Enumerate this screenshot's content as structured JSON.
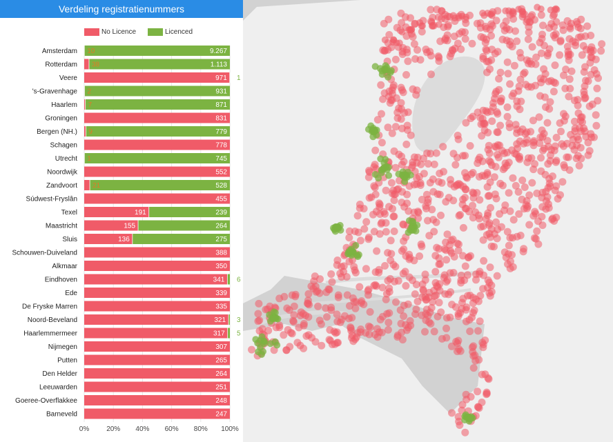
{
  "panel": {
    "title": "Verdeling registratienummers"
  },
  "colors": {
    "no_licence": "#f05b68",
    "licenced": "#7cb342",
    "title_bar": "#2a8ce5",
    "map_land": "#efefef",
    "map_water": "#d2d2d2"
  },
  "chart_data": {
    "type": "bar",
    "orientation": "horizontal",
    "stacked": "percent",
    "title": "Verdeling registratienummers",
    "legend_position": "top",
    "x_ticks": [
      "0%",
      "20%",
      "40%",
      "60%",
      "80%",
      "100%"
    ],
    "xlim": [
      0,
      100
    ],
    "categories": [
      "Amsterdam",
      "Rotterdam",
      "Veere",
      "'s-Gravenhage",
      "Haarlem",
      "Groningen",
      "Bergen (NH.)",
      "Schagen",
      "Utrecht",
      "Noordwijk",
      "Zandvoort",
      "Súdwest-Fryslân",
      "Texel",
      "Maastricht",
      "Sluis",
      "Schouwen-Duiveland",
      "Alkmaar",
      "Eindhoven",
      "Ede",
      "De Fryske Marren",
      "Noord-Beveland",
      "Haarlemmermeer",
      "Nijmegen",
      "Putten",
      "Den Helder",
      "Leeuwarden",
      "Goeree-Overflakkee",
      "Barneveld"
    ],
    "series": [
      {
        "name": "No Licence",
        "color": "#f05b68",
        "values": [
          10,
          38,
          971,
          2,
          7,
          831,
          9,
          778,
          1,
          552,
          21,
          455,
          191,
          155,
          136,
          388,
          350,
          341,
          339,
          335,
          321,
          317,
          307,
          265,
          264,
          251,
          248,
          247
        ],
        "labels": [
          "10",
          "38",
          "971",
          "2",
          "7",
          "831",
          "9",
          "778",
          "1",
          "552",
          "21",
          "455",
          "191",
          "155",
          "136",
          "388",
          "350",
          "341",
          "339",
          "335",
          "321",
          "317",
          "307",
          "265",
          "264",
          "251",
          "248",
          "247"
        ]
      },
      {
        "name": "Licenced",
        "color": "#7cb342",
        "values": [
          9267,
          1113,
          1,
          931,
          871,
          0,
          779,
          0,
          745,
          0,
          528,
          0,
          239,
          264,
          275,
          0,
          0,
          6,
          0,
          0,
          3,
          5,
          0,
          0,
          0,
          0,
          0,
          0
        ],
        "labels": [
          "9.267",
          "1.113",
          "1",
          "931",
          "871",
          "",
          "779",
          "",
          "745",
          "",
          "528",
          "",
          "239",
          "264",
          "275",
          "",
          "",
          "6",
          "",
          "",
          "3",
          "5",
          "",
          "",
          "",
          "",
          "",
          ""
        ]
      }
    ]
  },
  "map": {
    "description_layer": "dot-density map of registrations"
  }
}
